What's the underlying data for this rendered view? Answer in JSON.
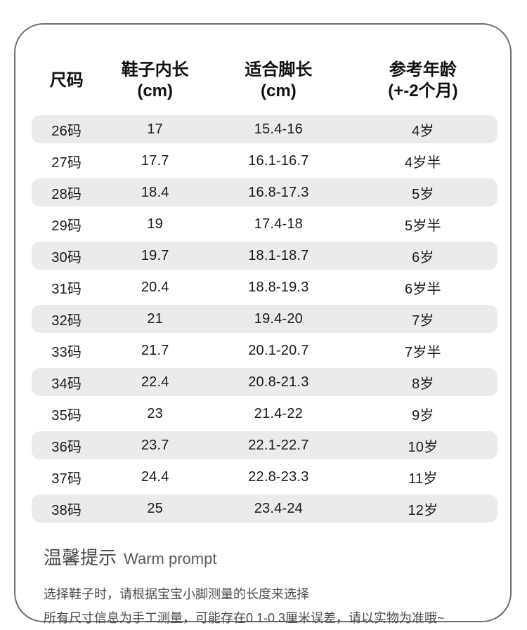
{
  "table": {
    "columns": [
      {
        "label": "尺码",
        "sub": ""
      },
      {
        "label": "鞋子内长",
        "sub": "(cm)"
      },
      {
        "label": "适合脚长",
        "sub": "(cm)"
      },
      {
        "label": "参考年龄",
        "sub": "(+-2个月)"
      }
    ],
    "rows": [
      [
        "26码",
        "17",
        "15.4-16",
        "4岁"
      ],
      [
        "27码",
        "17.7",
        "16.1-16.7",
        "4岁半"
      ],
      [
        "28码",
        "18.4",
        "16.8-17.3",
        "5岁"
      ],
      [
        "29码",
        "19",
        "17.4-18",
        "5岁半"
      ],
      [
        "30码",
        "19.7",
        "18.1-18.7",
        "6岁"
      ],
      [
        "31码",
        "20.4",
        "18.8-19.3",
        "6岁半"
      ],
      [
        "32码",
        "21",
        "19.4-20",
        "7岁"
      ],
      [
        "33码",
        "21.7",
        "20.1-20.7",
        "7岁半"
      ],
      [
        "34码",
        "22.4",
        "20.8-21.3",
        "8岁"
      ],
      [
        "35码",
        "23",
        "21.4-22",
        "9岁"
      ],
      [
        "36码",
        "23.7",
        "22.1-22.7",
        "10岁"
      ],
      [
        "37码",
        "24.4",
        "22.8-23.3",
        "11岁"
      ],
      [
        "38码",
        "25",
        "23.4-24",
        "12岁"
      ]
    ]
  },
  "tips": {
    "title_zh": "温馨提示",
    "title_en": "Warm prompt",
    "line1": "选择鞋子时，请根据宝宝小脚测量的长度来选择",
    "line2": "所有尺寸信息为手工测量，可能存在0.1-0.3厘米误差，请以实物为准哦~"
  },
  "colors": {
    "row_shaded": "#ebebeb",
    "card_border": "#6e6e6e",
    "text_primary": "#1a1a1a",
    "text_secondary": "#4d4d4d"
  }
}
